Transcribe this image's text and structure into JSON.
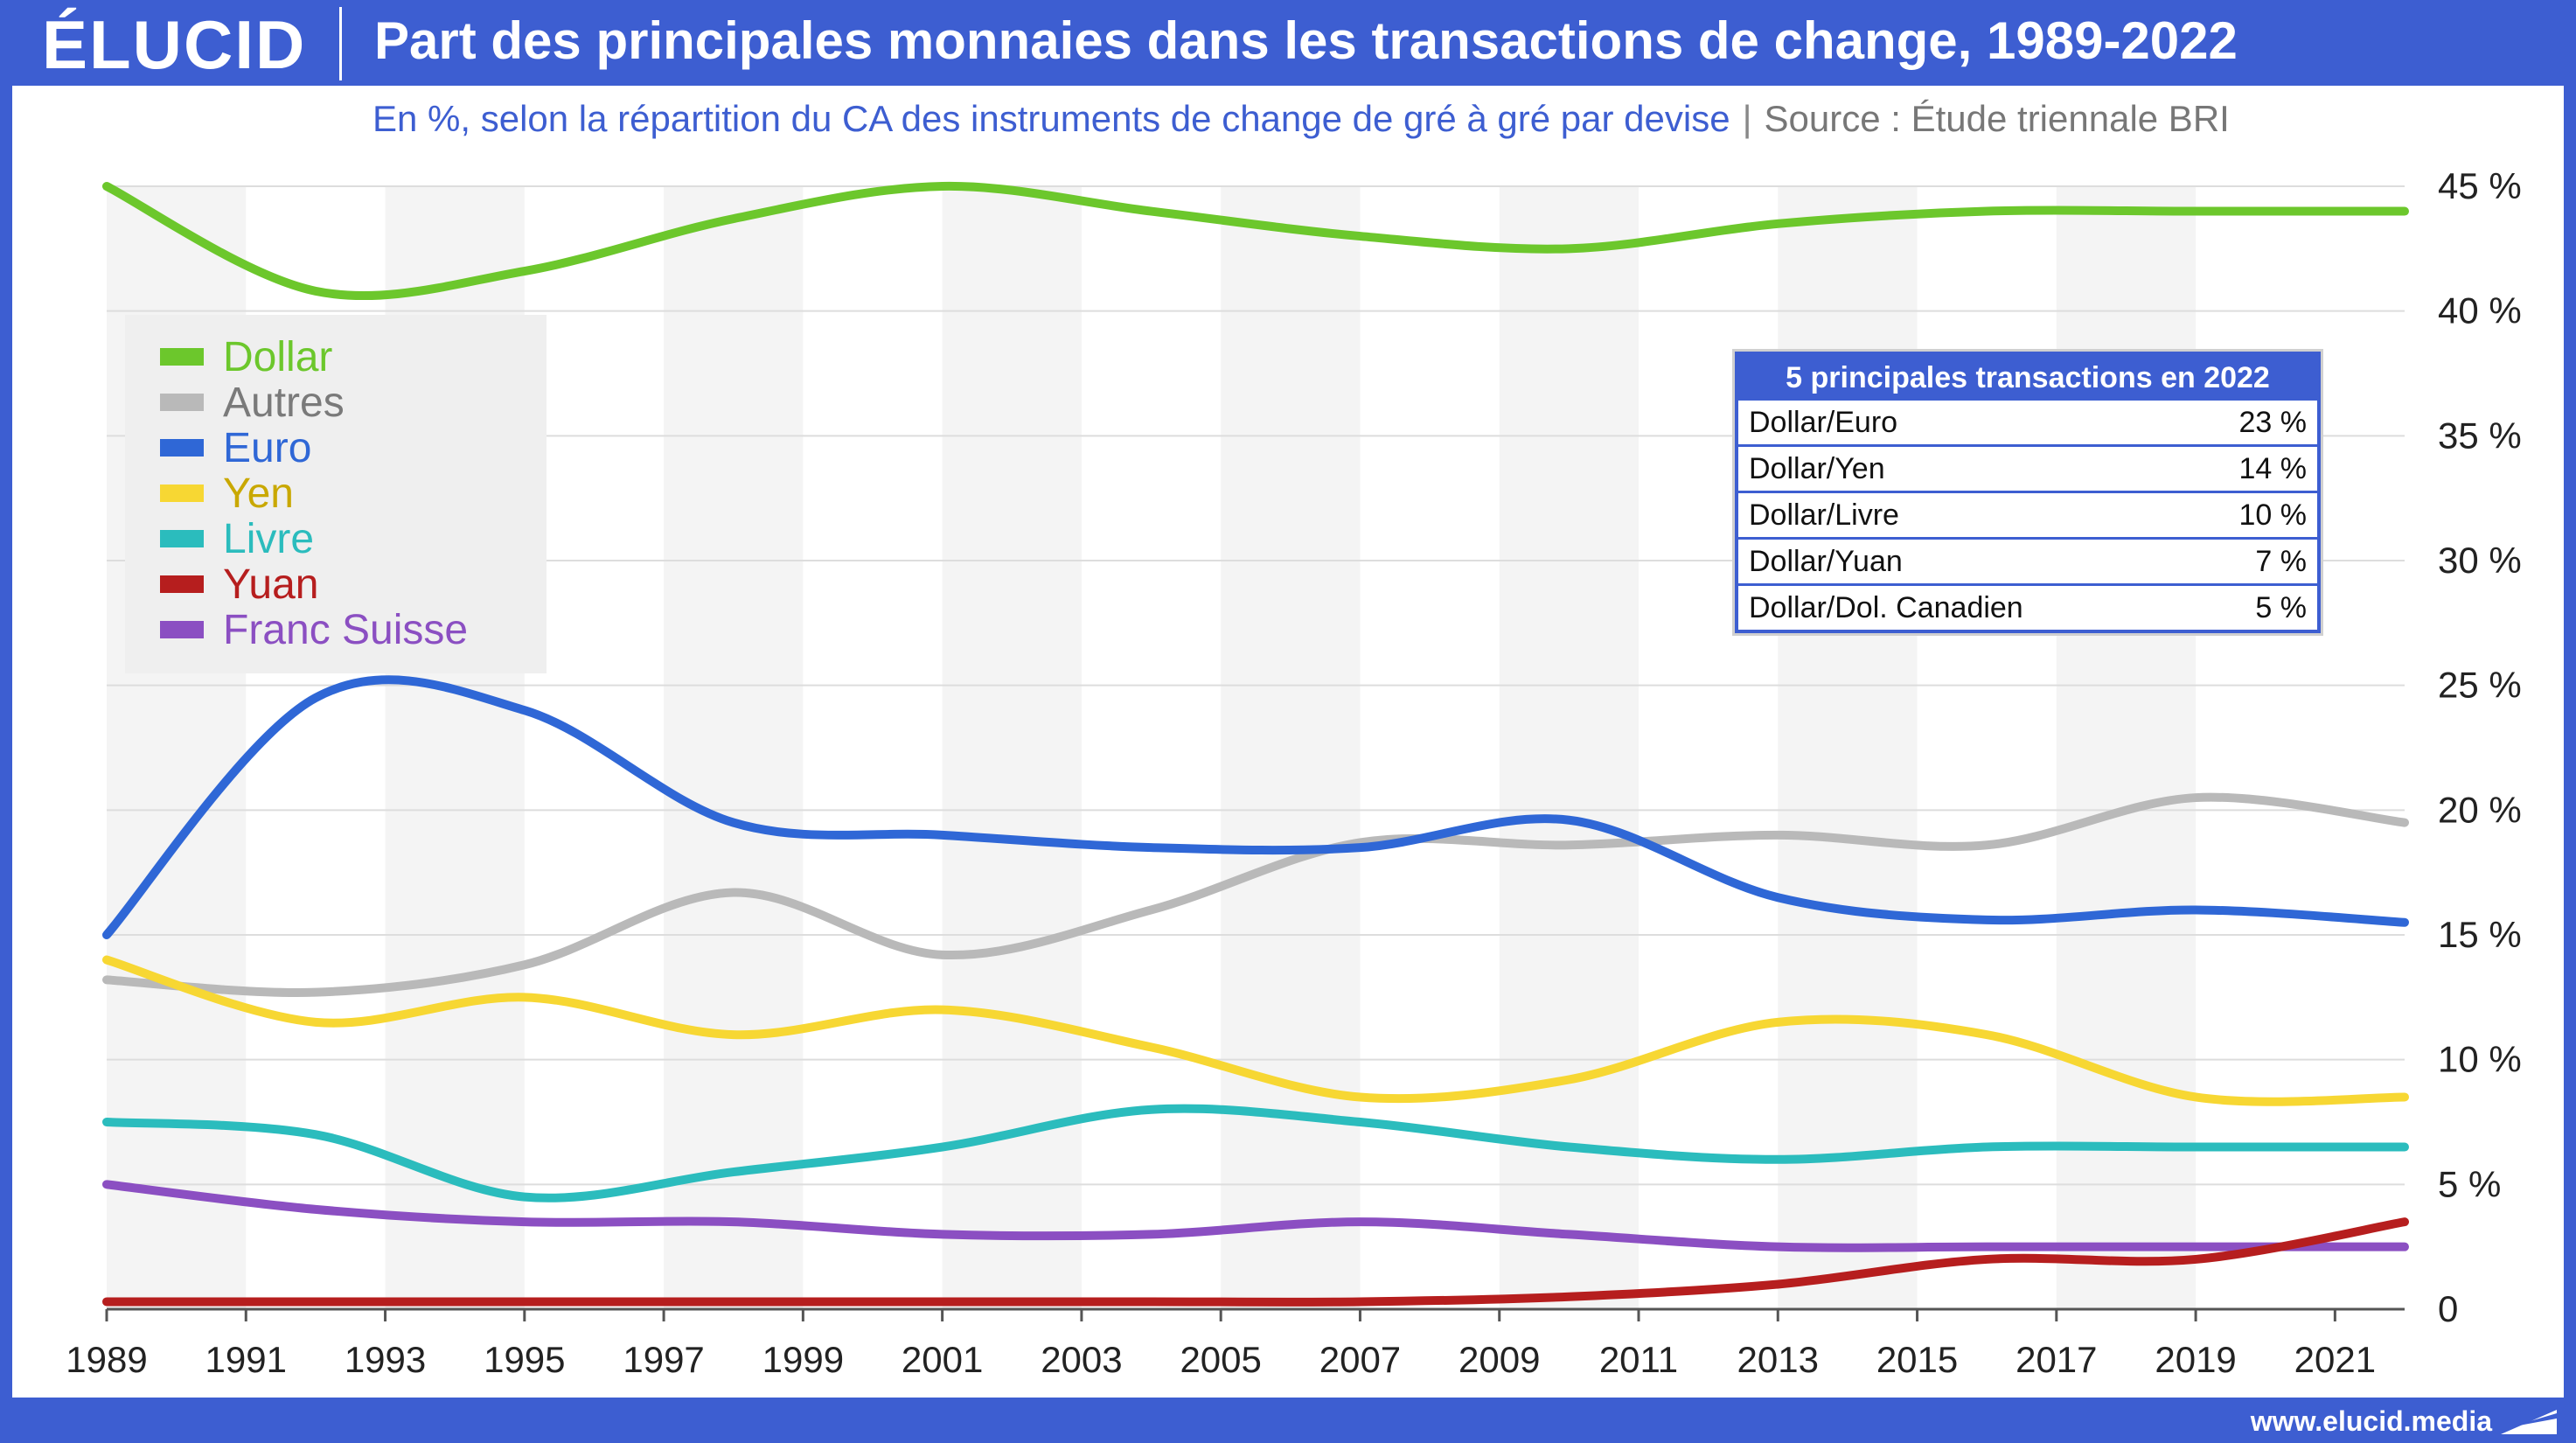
{
  "header": {
    "logo": "ÉLUCID",
    "title": "Part des principales monnaies dans les transactions de change, 1989-2022",
    "subtitle": "En %, selon la répartition du CA des instruments de change de gré à gré par devise",
    "separator": "|",
    "source": "Source : Étude triennale BRI"
  },
  "footer": {
    "url": "www.elucid.media"
  },
  "colors": {
    "brand": "#3d5ed1",
    "dollar": "#6cc72c",
    "autres": "#b9b9b9",
    "euro": "#2f67d6",
    "yen": "#f7d733",
    "livre": "#2bbcbd",
    "yuan": "#b61e1e",
    "franc_suisse": "#8b4fc2"
  },
  "chart_data": {
    "type": "line",
    "x": [
      1989,
      1992,
      1995,
      1998,
      2001,
      2004,
      2007,
      2010,
      2013,
      2016,
      2019,
      2022
    ],
    "xticks": [
      "1989",
      "1991",
      "1993",
      "1995",
      "1997",
      "1999",
      "2001",
      "2003",
      "2005",
      "2007",
      "2009",
      "2011",
      "2013",
      "2015",
      "2017",
      "2019",
      "2021"
    ],
    "yticks": [
      "0",
      "5 %",
      "10 %",
      "15 %",
      "20 %",
      "25 %",
      "30 %",
      "35 %",
      "40 %",
      "45 %"
    ],
    "ylim": [
      0,
      45
    ],
    "xlim": [
      1989,
      2022
    ],
    "grid": true,
    "legend_position": "top-left",
    "series": [
      {
        "name": "Dollar",
        "color": "#6cc72c",
        "values": [
          45,
          40.8,
          41.6,
          43.7,
          45,
          44,
          43,
          42.5,
          43.5,
          44,
          44,
          44
        ]
      },
      {
        "name": "Autres",
        "color": "#b9b9b9",
        "values": [
          13.2,
          12.7,
          13.8,
          16.7,
          14.2,
          16,
          18.7,
          18.6,
          19,
          18.6,
          20.5,
          19.5
        ]
      },
      {
        "name": "Euro",
        "color": "#2f67d6",
        "values": [
          15,
          24.5,
          24,
          19.5,
          19,
          18.5,
          18.5,
          19.6,
          16.5,
          15.6,
          16,
          15.5
        ]
      },
      {
        "name": "Yen",
        "color": "#f7d733",
        "values": [
          14,
          11.5,
          12.5,
          11,
          12,
          10.5,
          8.5,
          9.2,
          11.5,
          11,
          8.5,
          8.5
        ]
      },
      {
        "name": "Livre",
        "color": "#2bbcbd",
        "values": [
          7.5,
          7,
          4.5,
          5.5,
          6.5,
          8,
          7.5,
          6.5,
          6,
          6.5,
          6.5,
          6.5
        ]
      },
      {
        "name": "Yuan",
        "color": "#b61e1e",
        "values": [
          0.3,
          0.3,
          0.3,
          0.3,
          0.3,
          0.3,
          0.3,
          0.5,
          1,
          2,
          2,
          3.5
        ]
      },
      {
        "name": "Franc Suisse",
        "color": "#8b4fc2",
        "values": [
          5,
          4,
          3.5,
          3.5,
          3,
          3,
          3.5,
          3,
          2.5,
          2.5,
          2.5,
          2.5
        ]
      }
    ]
  },
  "table": {
    "title": "5 principales transactions en 2022",
    "rows": [
      {
        "pair": "Dollar/Euro",
        "value": "23 %"
      },
      {
        "pair": "Dollar/Yen",
        "value": "14 %"
      },
      {
        "pair": "Dollar/Livre",
        "value": "10 %"
      },
      {
        "pair": "Dollar/Yuan",
        "value": "7 %"
      },
      {
        "pair": "Dollar/Dol. Canadien",
        "value": "5 %"
      }
    ]
  }
}
